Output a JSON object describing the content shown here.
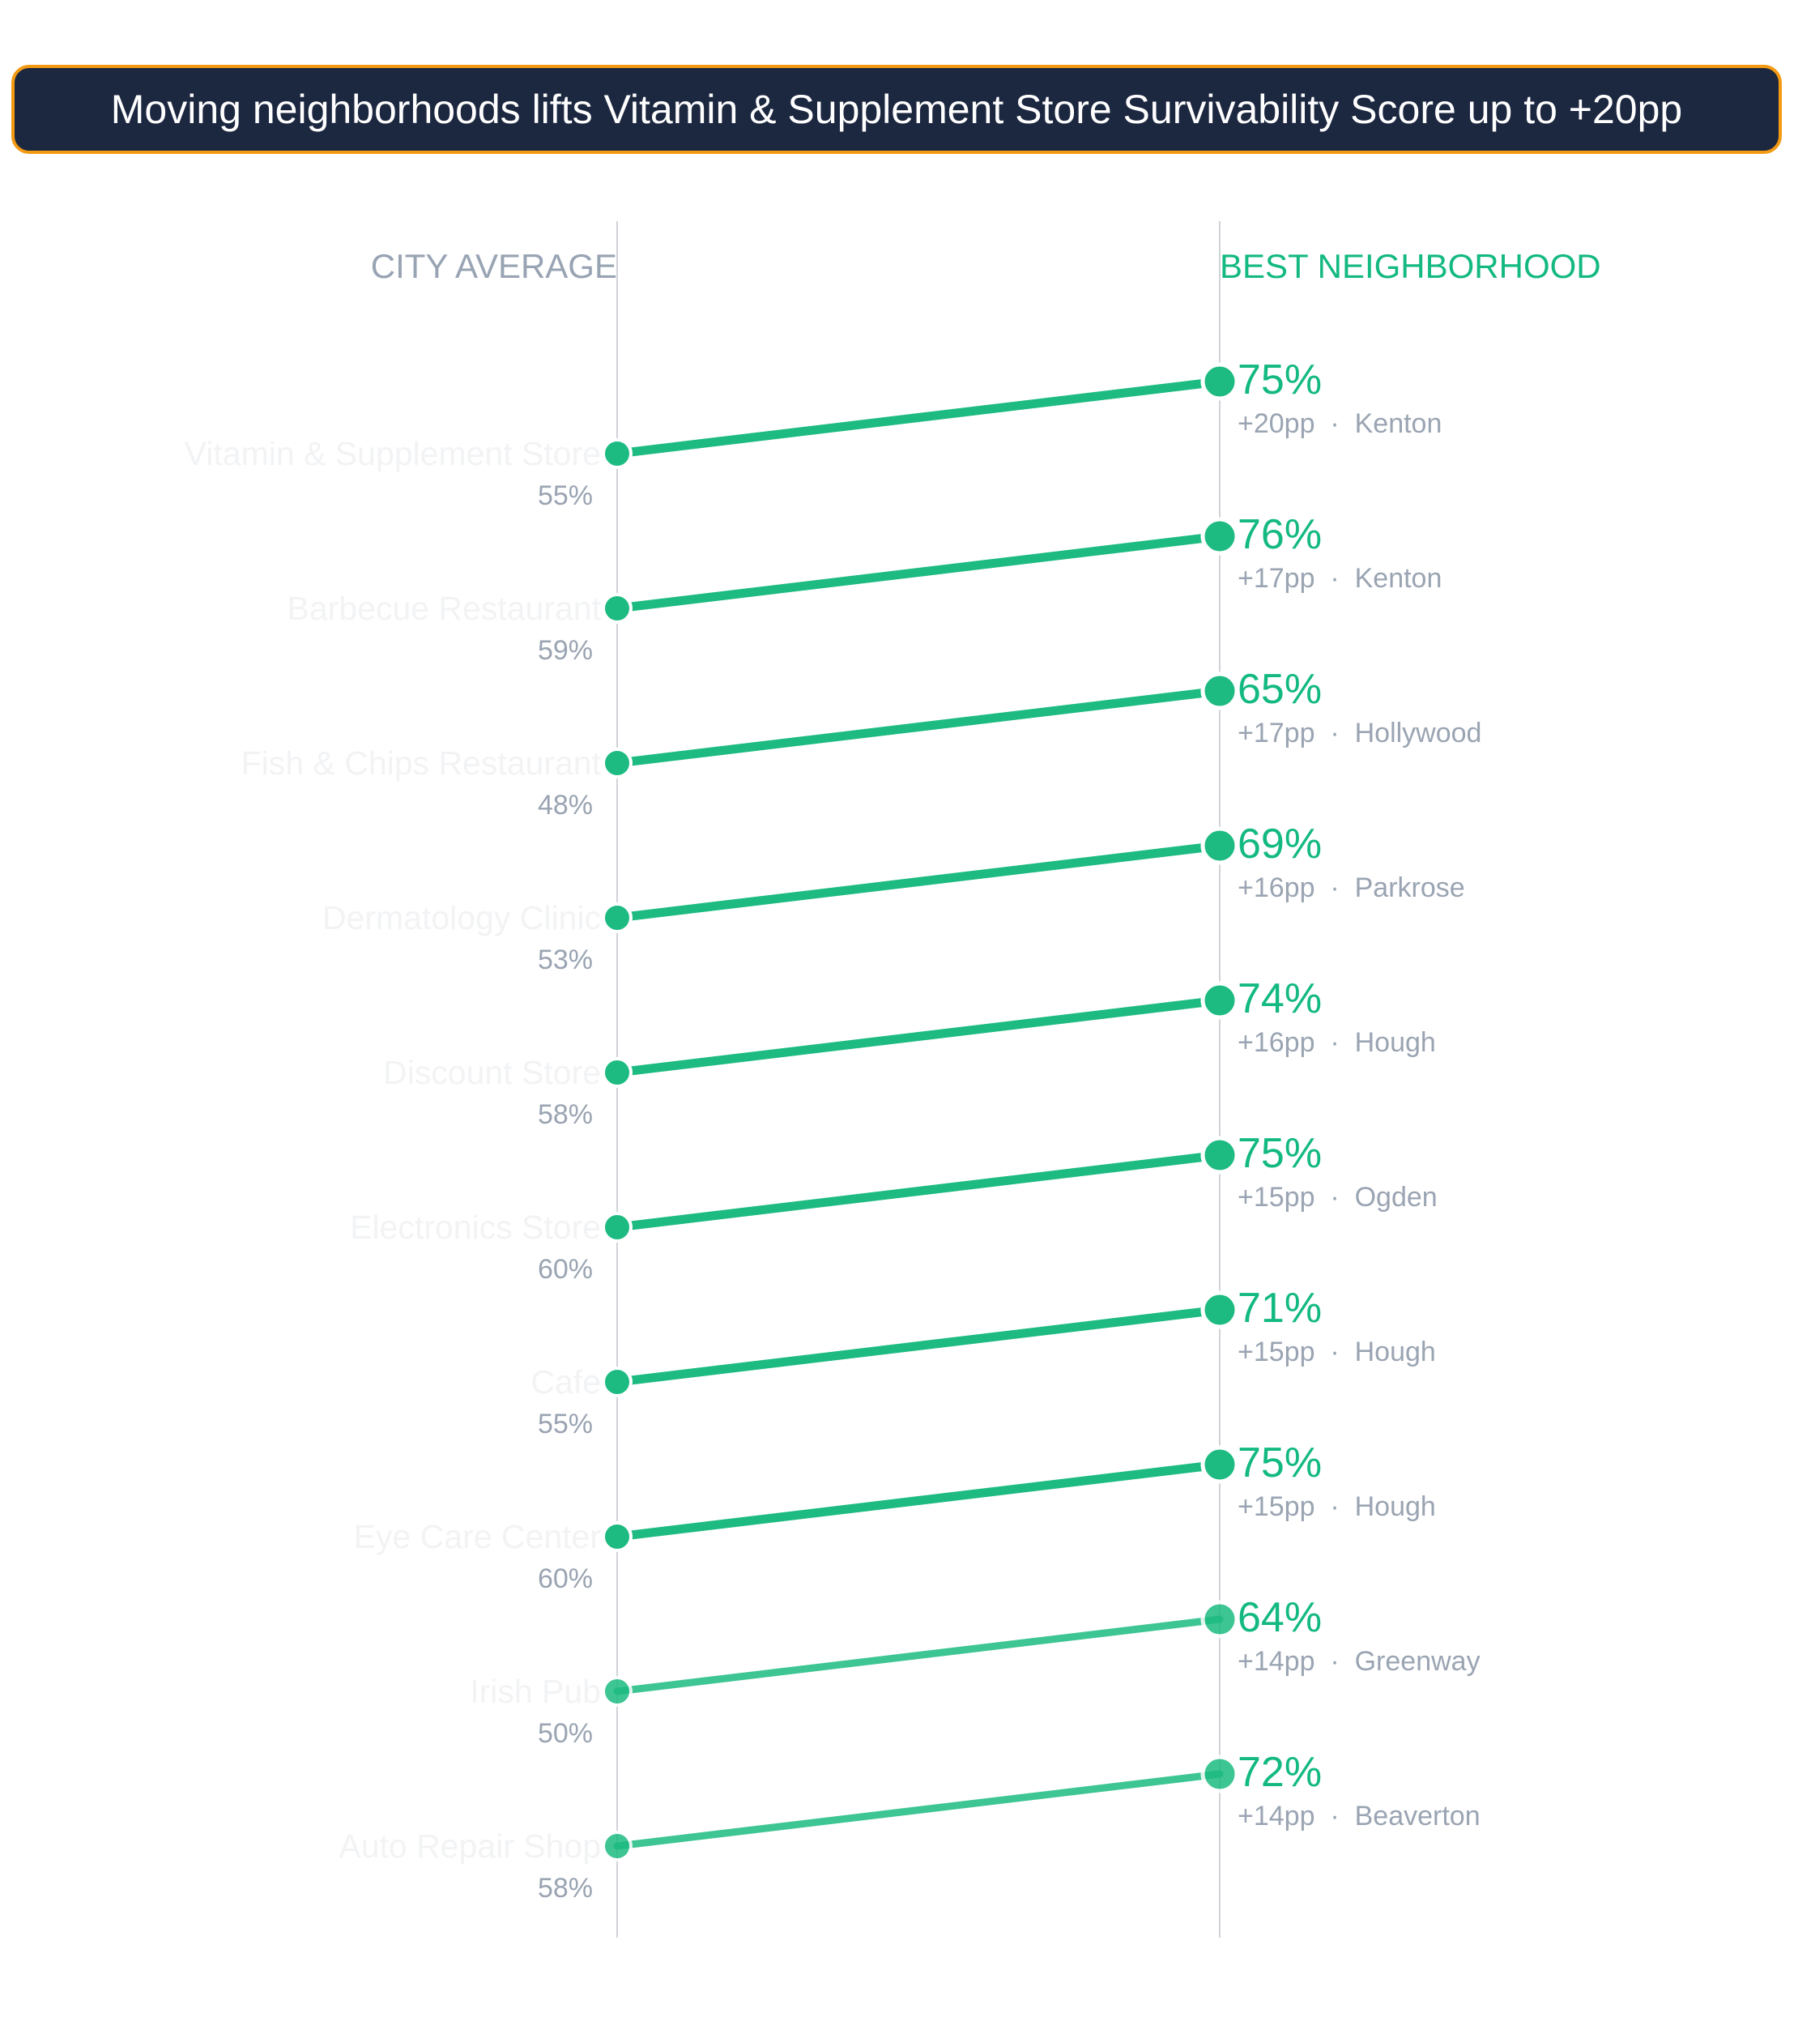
{
  "chart_data": {
    "type": "slope",
    "title": "Moving neighborhoods lifts Vitamin & Supplement Store Survivability Score up to +20pp",
    "left_header": "CITY AVERAGE",
    "right_header": "BEST NEIGHBORHOOD",
    "value_suffix": "%",
    "unit_label": "pp",
    "ylim": [
      0,
      100
    ],
    "colors": {
      "accent": "#1dbb82",
      "header_left": "#98a3b3",
      "header_right": "#13b981",
      "muted_text": "#9aa4b2",
      "faint_label": "#f2f3f5",
      "axis": "#cfd3d8",
      "title_bg": "#1c2740",
      "title_border": "#f29a12"
    },
    "rows": [
      {
        "category": "Vitamin & Supplement Store",
        "city_avg": 55,
        "best": 75,
        "delta": "+20pp",
        "neighborhood": "Kenton",
        "emphasis": true
      },
      {
        "category": "Barbecue Restaurant",
        "city_avg": 59,
        "best": 76,
        "delta": "+17pp",
        "neighborhood": "Kenton",
        "emphasis": true
      },
      {
        "category": "Fish & Chips Restaurant",
        "city_avg": 48,
        "best": 65,
        "delta": "+17pp",
        "neighborhood": "Hollywood",
        "emphasis": true
      },
      {
        "category": "Dermatology Clinic",
        "city_avg": 53,
        "best": 69,
        "delta": "+16pp",
        "neighborhood": "Parkrose",
        "emphasis": true
      },
      {
        "category": "Discount Store",
        "city_avg": 58,
        "best": 74,
        "delta": "+16pp",
        "neighborhood": "Hough",
        "emphasis": true
      },
      {
        "category": "Electronics Store",
        "city_avg": 60,
        "best": 75,
        "delta": "+15pp",
        "neighborhood": "Ogden",
        "emphasis": true
      },
      {
        "category": "Cafe",
        "city_avg": 55,
        "best": 71,
        "delta": "+15pp",
        "neighborhood": "Hough",
        "emphasis": true
      },
      {
        "category": "Eye Care Center",
        "city_avg": 60,
        "best": 75,
        "delta": "+15pp",
        "neighborhood": "Hough",
        "emphasis": true
      },
      {
        "category": "Irish Pub",
        "city_avg": 50,
        "best": 64,
        "delta": "+14pp",
        "neighborhood": "Greenway",
        "emphasis": false
      },
      {
        "category": "Auto Repair Shop",
        "city_avg": 58,
        "best": 72,
        "delta": "+14pp",
        "neighborhood": "Beaverton",
        "emphasis": false
      }
    ]
  }
}
